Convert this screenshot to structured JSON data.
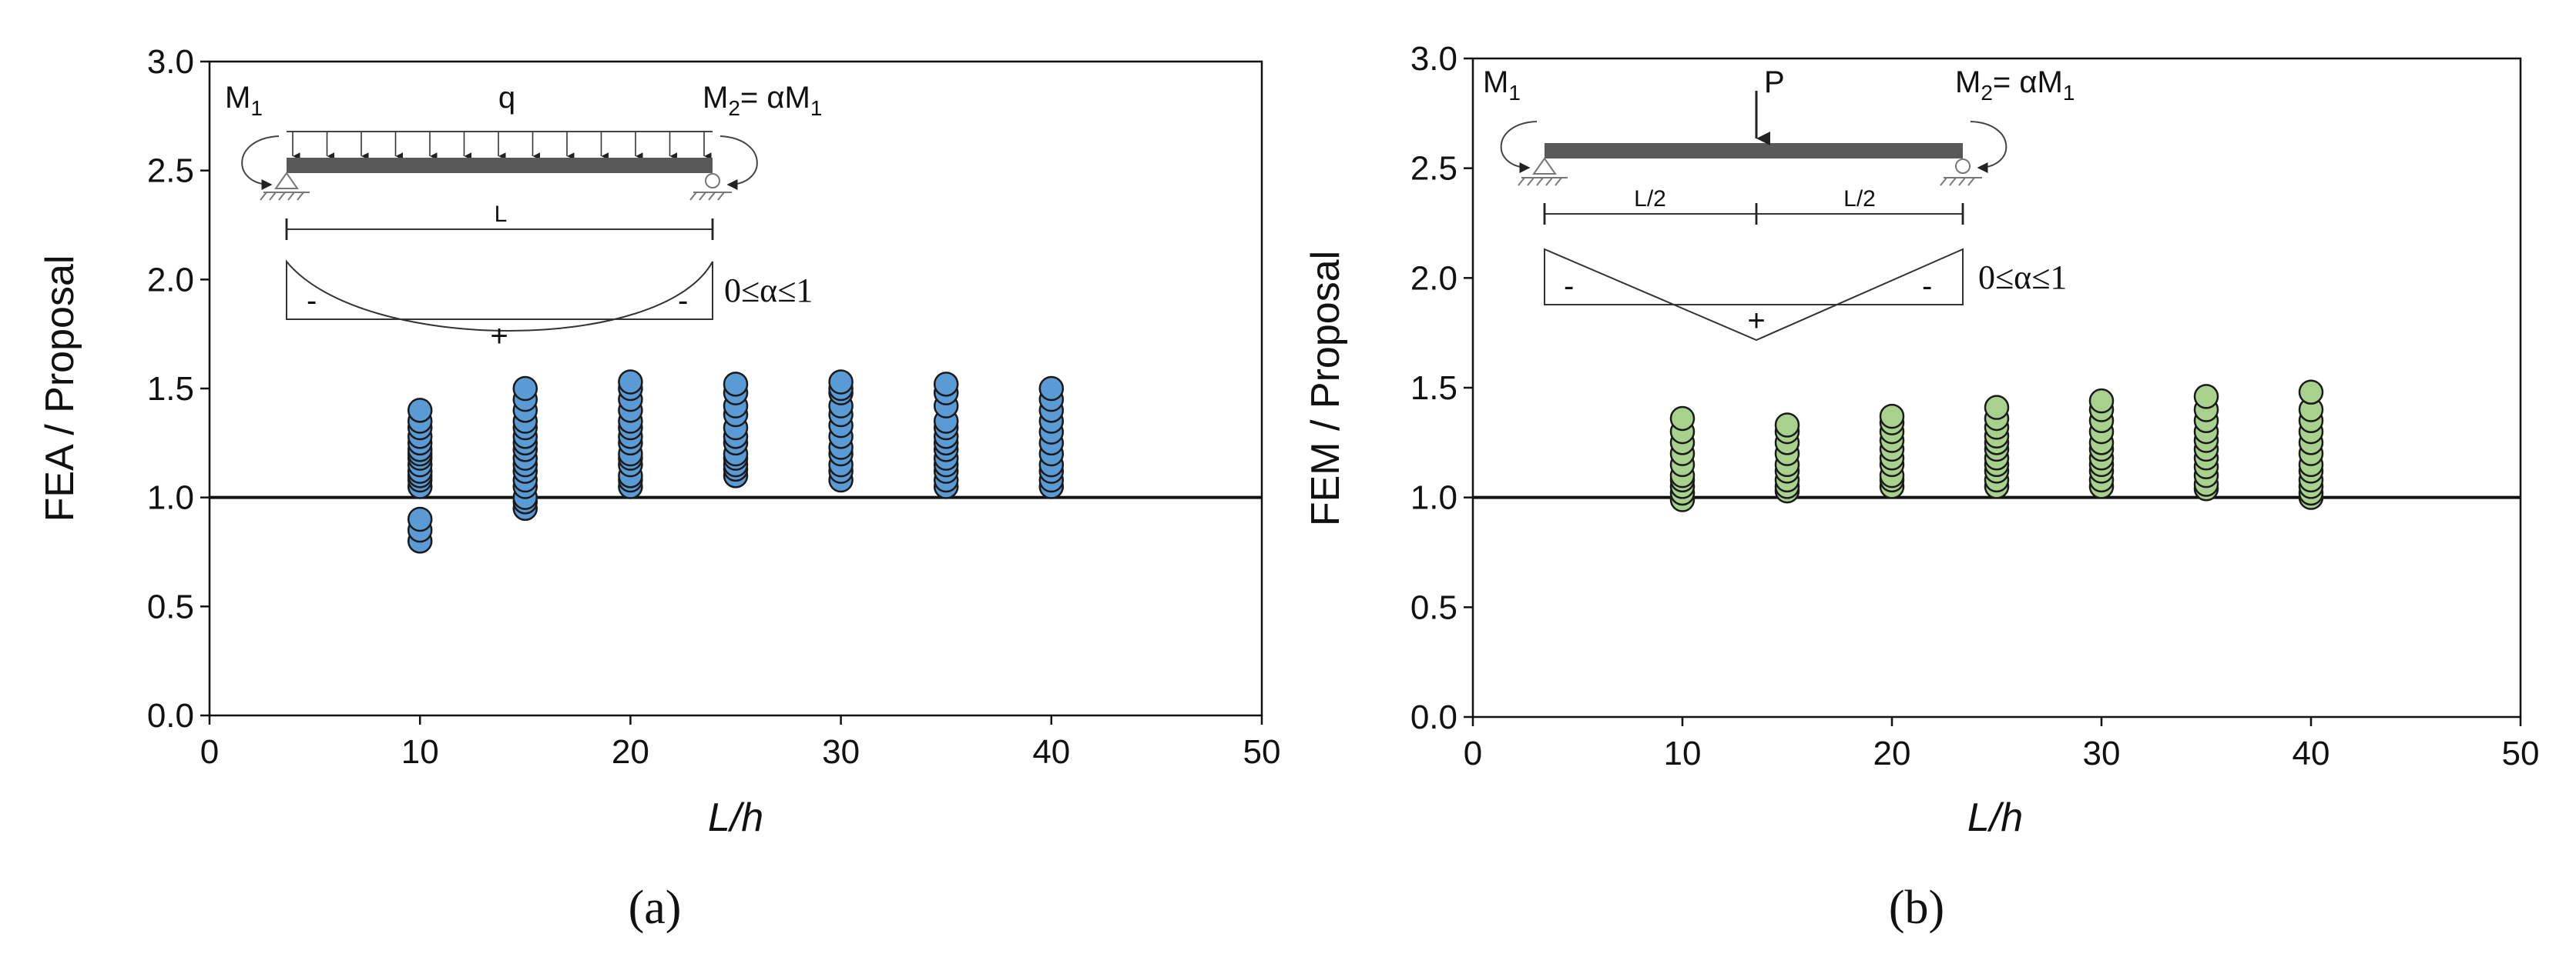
{
  "chart_data": [
    {
      "type": "scatter",
      "panel_label": "(a)",
      "xlabel": "L/h",
      "ylabel": "FEA / Proposal",
      "xlim": [
        0,
        50
      ],
      "ylim": [
        0,
        3.0
      ],
      "xticks": [
        "0",
        "10",
        "20",
        "30",
        "40",
        "50"
      ],
      "yticks": [
        "0.0",
        "0.5",
        "1.0",
        "1.5",
        "2.0",
        "2.5",
        "3.0"
      ],
      "reference_line_y": 1.0,
      "marker_color": "#5b9bd5",
      "series": [
        {
          "x": 10,
          "y": [
            0.8,
            0.85,
            0.9,
            1.05,
            1.08,
            1.1,
            1.12,
            1.15,
            1.18,
            1.2,
            1.22,
            1.25,
            1.28,
            1.32,
            1.35,
            1.4
          ]
        },
        {
          "x": 15,
          "y": [
            0.95,
            0.98,
            1.0,
            1.05,
            1.08,
            1.12,
            1.15,
            1.18,
            1.22,
            1.25,
            1.28,
            1.32,
            1.35,
            1.4,
            1.45,
            1.5
          ]
        },
        {
          "x": 20,
          "y": [
            1.05,
            1.08,
            1.1,
            1.15,
            1.18,
            1.2,
            1.25,
            1.28,
            1.32,
            1.35,
            1.4,
            1.45,
            1.5,
            1.53
          ]
        },
        {
          "x": 25,
          "y": [
            1.1,
            1.13,
            1.15,
            1.18,
            1.2,
            1.25,
            1.28,
            1.32,
            1.38,
            1.42,
            1.48,
            1.52
          ]
        },
        {
          "x": 30,
          "y": [
            1.08,
            1.12,
            1.15,
            1.2,
            1.23,
            1.28,
            1.33,
            1.38,
            1.42,
            1.48,
            1.5,
            1.53
          ]
        },
        {
          "x": 35,
          "y": [
            1.05,
            1.08,
            1.12,
            1.15,
            1.18,
            1.22,
            1.25,
            1.28,
            1.32,
            1.35,
            1.42,
            1.48,
            1.52
          ]
        },
        {
          "x": 40,
          "y": [
            1.05,
            1.08,
            1.12,
            1.15,
            1.2,
            1.25,
            1.3,
            1.35,
            1.4,
            1.45,
            1.5
          ]
        }
      ],
      "inset": {
        "m1": "M",
        "m1_sub": "1",
        "m2": "M",
        "m2_sub": "2",
        "m2_rhs": "= αM",
        "m2_rhs_sub": "1",
        "load": "q",
        "span": "L",
        "minus_left": "-",
        "plus": "+",
        "minus_right": "-",
        "alpha_range": "0≤α≤1"
      }
    },
    {
      "type": "scatter",
      "panel_label": "(b)",
      "xlabel": "L/h",
      "ylabel": "FEM / Proposal",
      "xlim": [
        0,
        50
      ],
      "ylim": [
        0,
        3.0
      ],
      "xticks": [
        "0",
        "10",
        "20",
        "30",
        "40",
        "50"
      ],
      "yticks": [
        "0.0",
        "0.5",
        "1.0",
        "1.5",
        "2.0",
        "2.5",
        "3.0"
      ],
      "reference_line_y": 1.0,
      "marker_color": "#a9d18e",
      "series": [
        {
          "x": 10,
          "y": [
            0.99,
            1.02,
            1.05,
            1.08,
            1.1,
            1.15,
            1.2,
            1.25,
            1.3,
            1.36
          ]
        },
        {
          "x": 15,
          "y": [
            1.03,
            1.05,
            1.08,
            1.12,
            1.15,
            1.2,
            1.25,
            1.3,
            1.33
          ]
        },
        {
          "x": 20,
          "y": [
            1.05,
            1.08,
            1.1,
            1.15,
            1.18,
            1.22,
            1.26,
            1.3,
            1.34,
            1.37
          ]
        },
        {
          "x": 25,
          "y": [
            1.05,
            1.08,
            1.12,
            1.15,
            1.18,
            1.22,
            1.25,
            1.28,
            1.32,
            1.36,
            1.41
          ]
        },
        {
          "x": 30,
          "y": [
            1.05,
            1.08,
            1.12,
            1.15,
            1.18,
            1.22,
            1.25,
            1.3,
            1.35,
            1.4,
            1.44
          ]
        },
        {
          "x": 35,
          "y": [
            1.04,
            1.06,
            1.1,
            1.14,
            1.18,
            1.22,
            1.26,
            1.3,
            1.35,
            1.4,
            1.46
          ]
        },
        {
          "x": 40,
          "y": [
            1.0,
            1.02,
            1.05,
            1.08,
            1.12,
            1.15,
            1.2,
            1.25,
            1.3,
            1.35,
            1.4,
            1.48
          ]
        }
      ],
      "inset": {
        "m1": "M",
        "m1_sub": "1",
        "m2": "M",
        "m2_sub": "2",
        "m2_rhs": "= αM",
        "m2_rhs_sub": "1",
        "load": "P",
        "half_left": "L/2",
        "half_right": "L/2",
        "minus_left": "-",
        "plus": "+",
        "minus_right": "-",
        "alpha_range": "0≤α≤1"
      }
    }
  ]
}
